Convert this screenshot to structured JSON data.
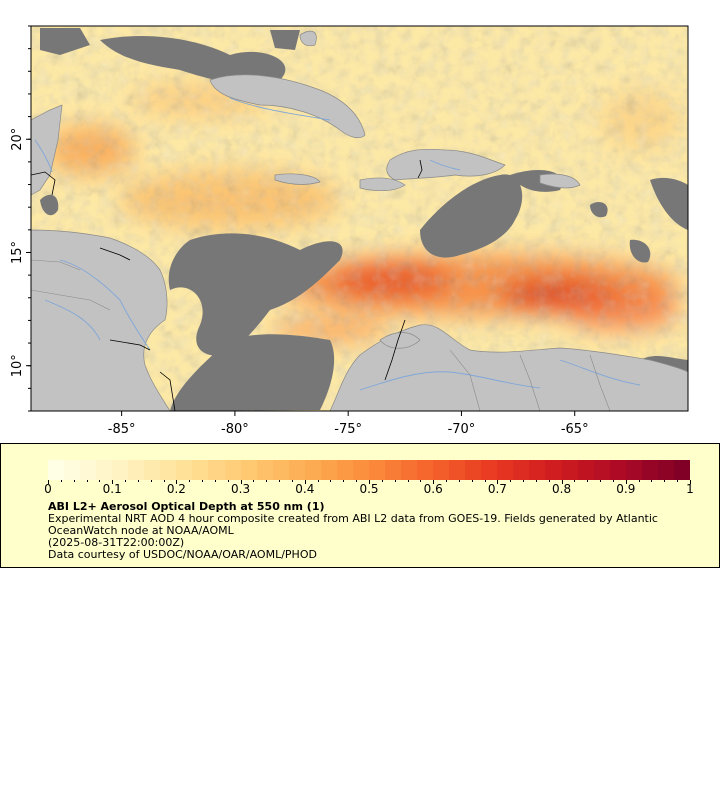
{
  "map": {
    "lon_range": [
      -89,
      -60
    ],
    "lat_range": [
      8,
      25
    ],
    "lon_ticks": [
      {
        "value": -85,
        "label": "-85°"
      },
      {
        "value": -80,
        "label": "-80°"
      },
      {
        "value": -75,
        "label": "-75°"
      },
      {
        "value": -70,
        "label": "-70°"
      },
      {
        "value": -65,
        "label": "-65°"
      }
    ],
    "lat_ticks": [
      {
        "value": 20,
        "label": "20°"
      },
      {
        "value": 15,
        "label": "15°"
      },
      {
        "value": 10,
        "label": "10°"
      }
    ],
    "colors": {
      "no_data": "#777777",
      "land": "#c2c2c2",
      "coast": "#888888",
      "rivers": "#7fa6d9",
      "borders": "#000000"
    }
  },
  "legend": {
    "colorbar_range": [
      0,
      1
    ],
    "colorbar_colors": [
      "#ffffe6",
      "#fff3c4",
      "#ffe39a",
      "#ffcb74",
      "#fdae54",
      "#fb8c3c",
      "#f5632c",
      "#e83922",
      "#cf1b1f",
      "#ad0a26",
      "#800026"
    ],
    "tick_labels": [
      "0",
      "0.1",
      "0.2",
      "0.3",
      "0.4",
      "0.5",
      "0.6",
      "0.7",
      "0.8",
      "0.9",
      "1"
    ],
    "title": "ABI L2+ Aerosol Optical Depth at 550 nm (1)",
    "description": "Experimental NRT AOD 4 hour composite created from ABI L2 data from GOES-19. Fields generated by Atlantic OceanWatch node at NOAA/AOML",
    "timestamp": "(2025-08-31T22:00:00Z)",
    "credit": "Data courtesy of USDOC/NOAA/OAR/AOML/PHOD"
  }
}
